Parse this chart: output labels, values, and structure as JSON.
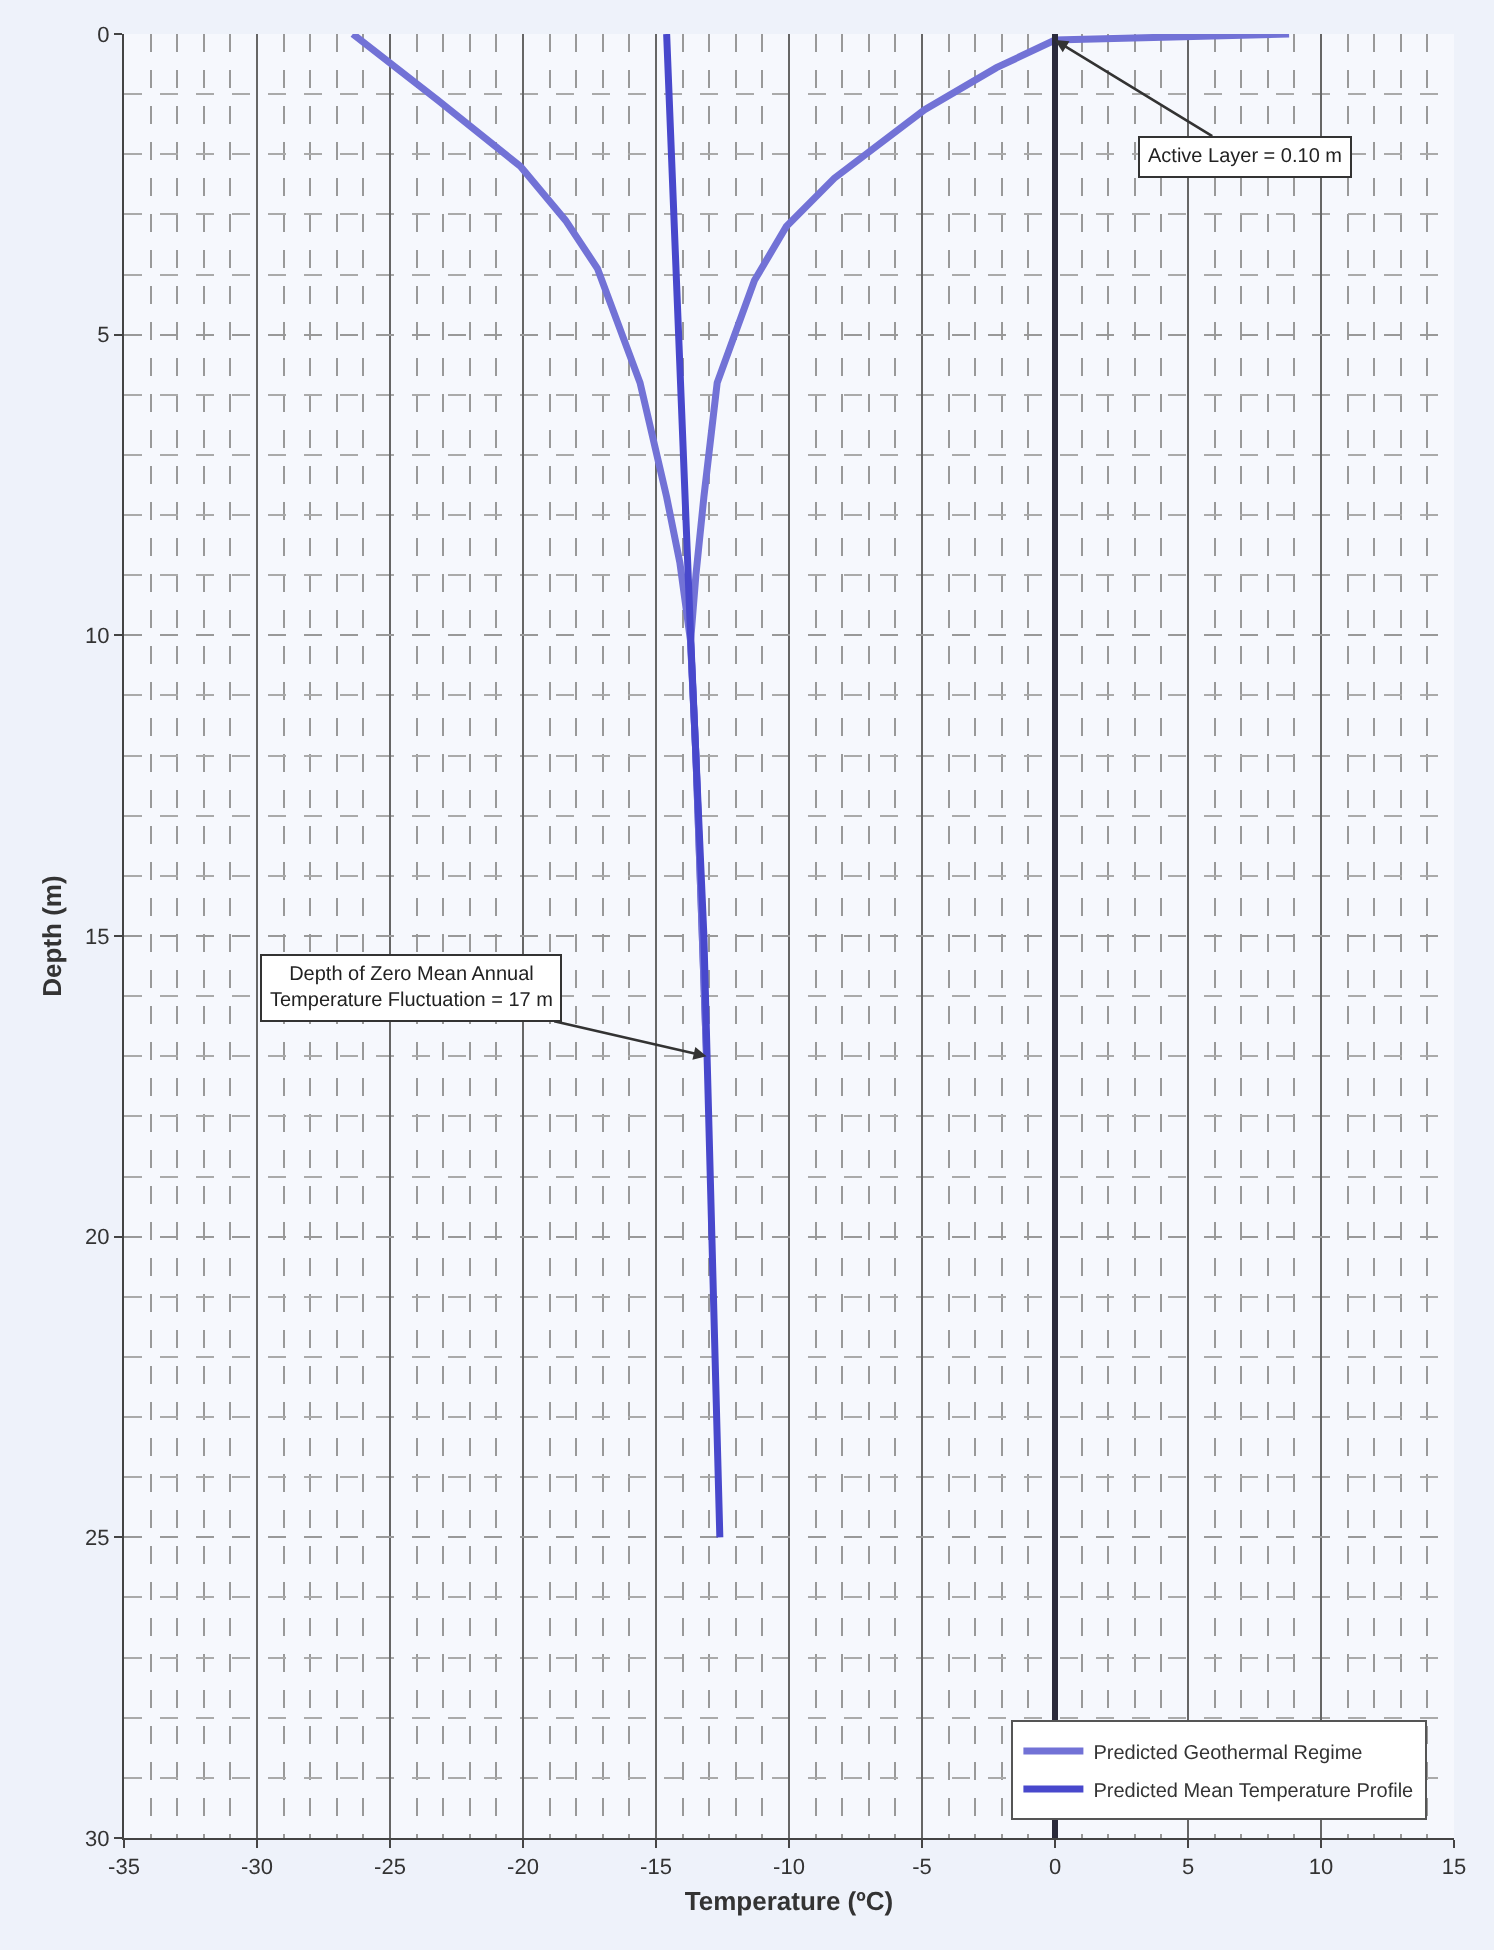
{
  "chart_data": {
    "type": "line",
    "xlabel": "Temperature (ºC)",
    "ylabel": "Depth (m)",
    "xlim": [
      -35,
      15
    ],
    "xticks": [
      -35,
      -30,
      -25,
      -20,
      -15,
      -10,
      -5,
      0,
      5,
      10,
      15
    ],
    "ylim": [
      30,
      0
    ],
    "yticks": [
      0,
      5,
      10,
      15,
      20,
      25,
      30
    ],
    "grid": true,
    "legend": "bottom right",
    "marker": "none",
    "line_style": "solid",
    "series": [
      {
        "name": "Predicted Geothermal Regime",
        "color": "#7272d6",
        "x": [
          -26.4,
          -23.2,
          -20.1,
          -18.4,
          -17.2,
          -15.6,
          -14.6,
          -14.1,
          -13.7,
          -13.5,
          -13.1
        ],
        "values": [
          0,
          1.1,
          2.2,
          3.1,
          3.9,
          5.8,
          7.7,
          8.8,
          10.1,
          12,
          17
        ]
      },
      {
        "color": "#7272d6",
        "x": [
          8.8,
          0,
          -2.2,
          -4.9,
          -8.3,
          -10.1,
          -11.3,
          -12.7,
          -13.2,
          -13.5,
          -13.7,
          -13.5,
          -13.1
        ],
        "values": [
          0,
          0.1,
          0.56,
          1.26,
          2.4,
          3.2,
          4.1,
          5.8,
          7.7,
          9.0,
          10.1,
          12,
          17
        ]
      },
      {
        "name": "Predicted Mean Temperature Profile",
        "color": "#4848cc",
        "x": [
          -14.6,
          -13.7,
          -13.2,
          -12.9,
          -12.6
        ],
        "values": [
          0,
          10,
          15,
          20,
          25
        ]
      }
    ],
    "ref_lines": [
      {
        "axis": "x",
        "value": 0,
        "color": "#2a2a3a"
      }
    ],
    "annotations": [
      {
        "text": "Active Layer = 0.10 m",
        "x": 0,
        "y": 0.1
      },
      {
        "text": "Depth of Zero Mean Annual Temperature Fluctuation = 17 m",
        "x": -13.1,
        "y": 17
      }
    ]
  }
}
